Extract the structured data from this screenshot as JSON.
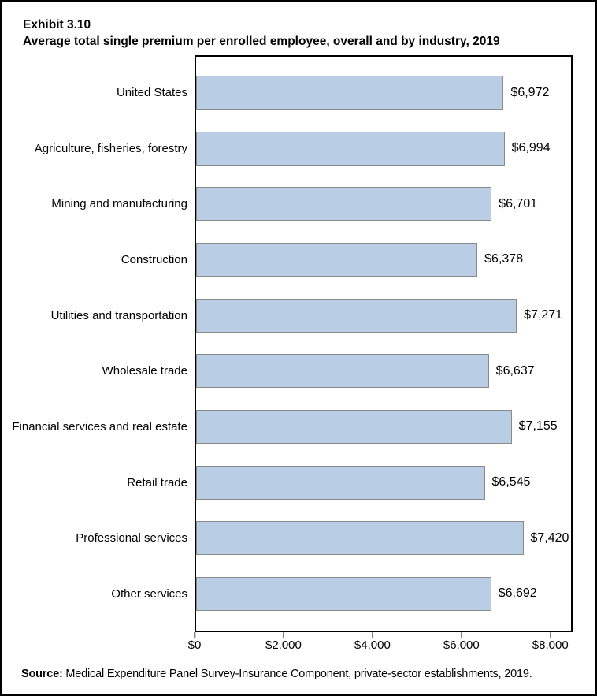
{
  "header": {
    "exhibit_label": "Exhibit 3.10",
    "title": "Average total single premium per enrolled employee, overall and by industry, 2019"
  },
  "source": {
    "label": "Source:",
    "text": " Medical Expenditure Panel Survey-Insurance Component, private-sector establishments, 2019."
  },
  "chart_data": {
    "type": "bar",
    "orientation": "horizontal",
    "title": "Average total single premium per enrolled employee, overall and by industry, 2019",
    "categories": [
      "United States",
      "Agriculture, fisheries, forestry",
      "Mining and manufacturing",
      "Construction",
      "Utilities and transportation",
      "Wholesale trade",
      "Financial services and real estate",
      "Retail trade",
      "Professional services",
      "Other services"
    ],
    "values": [
      6972,
      6994,
      6701,
      6378,
      7271,
      6637,
      7155,
      6545,
      7420,
      6692
    ],
    "value_labels": [
      "$6,972",
      "$6,994",
      "$6,701",
      "$6,378",
      "$7,271",
      "$6,637",
      "$7,155",
      "$6,545",
      "$7,420",
      "$6,692"
    ],
    "x_ticks": [
      0,
      2000,
      4000,
      6000,
      8000
    ],
    "x_tick_labels": [
      "$0",
      "$2,000",
      "$4,000",
      "$6,000",
      "$8,000"
    ],
    "xlim": [
      0,
      8500
    ],
    "grid": false,
    "legend": false,
    "bar_fill": "#b9cde4",
    "bar_border": "#8a8a8a"
  }
}
